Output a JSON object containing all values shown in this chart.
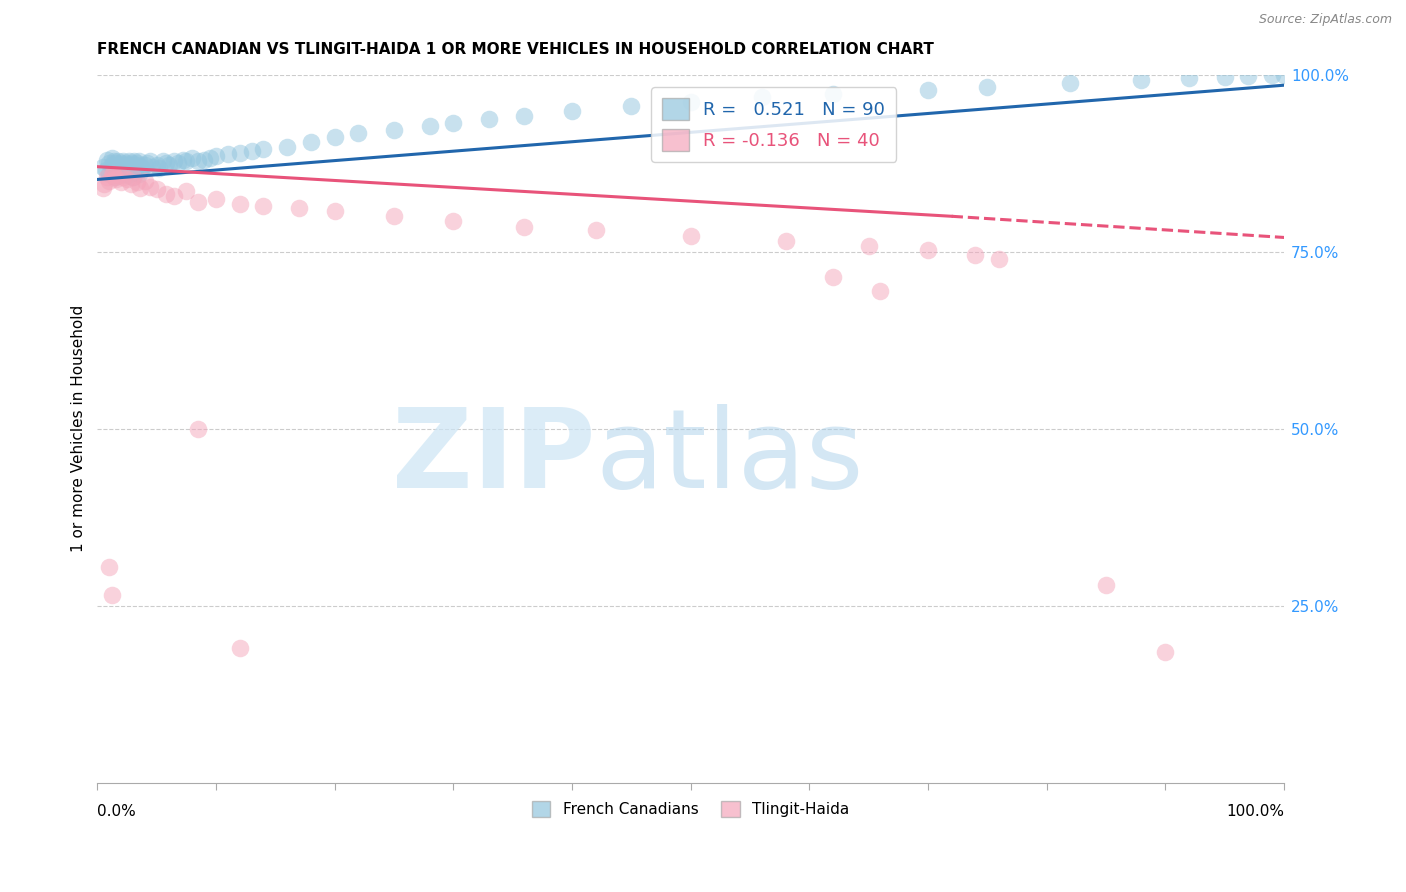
{
  "title": "FRENCH CANADIAN VS TLINGIT-HAIDA 1 OR MORE VEHICLES IN HOUSEHOLD CORRELATION CHART",
  "source": "Source: ZipAtlas.com",
  "ylabel": "1 or more Vehicles in Household",
  "legend_label1": "French Canadians",
  "legend_label2": "Tlingit-Haida",
  "R1": 0.521,
  "N1": 90,
  "R2": -0.136,
  "N2": 40,
  "blue_color": "#92c5de",
  "pink_color": "#f4a6bb",
  "blue_line_color": "#2166ac",
  "pink_line_color": "#e8537a",
  "xlim": [
    0.0,
    1.0
  ],
  "ylim": [
    0.0,
    1.0
  ],
  "blue_line_x0": 0.0,
  "blue_line_y0": 0.852,
  "blue_line_x1": 1.0,
  "blue_line_y1": 0.985,
  "pink_line_x0": 0.0,
  "pink_line_y0": 0.87,
  "pink_line_solid_x1": 0.72,
  "pink_line_solid_y1": 0.8,
  "pink_line_dash_x1": 1.02,
  "pink_line_dash_y1": 0.768,
  "blue_scatter_x": [
    0.005,
    0.007,
    0.008,
    0.01,
    0.01,
    0.012,
    0.012,
    0.013,
    0.014,
    0.015,
    0.015,
    0.016,
    0.017,
    0.018,
    0.018,
    0.019,
    0.02,
    0.02,
    0.021,
    0.022,
    0.022,
    0.023,
    0.024,
    0.025,
    0.025,
    0.026,
    0.027,
    0.028,
    0.028,
    0.029,
    0.03,
    0.03,
    0.031,
    0.032,
    0.033,
    0.034,
    0.035,
    0.035,
    0.037,
    0.038,
    0.04,
    0.042,
    0.044,
    0.046,
    0.05,
    0.052,
    0.055,
    0.058,
    0.06,
    0.065,
    0.068,
    0.072,
    0.075,
    0.08,
    0.085,
    0.09,
    0.095,
    0.1,
    0.11,
    0.12,
    0.13,
    0.14,
    0.16,
    0.18,
    0.2,
    0.22,
    0.25,
    0.28,
    0.3,
    0.33,
    0.36,
    0.4,
    0.45,
    0.5,
    0.56,
    0.62,
    0.7,
    0.75,
    0.82,
    0.88,
    0.92,
    0.95,
    0.97,
    0.99,
    1.0,
    0.015,
    0.02,
    0.025,
    0.03,
    0.035
  ],
  "blue_scatter_y": [
    0.87,
    0.865,
    0.88,
    0.875,
    0.86,
    0.872,
    0.882,
    0.868,
    0.878,
    0.875,
    0.865,
    0.87,
    0.878,
    0.862,
    0.872,
    0.868,
    0.875,
    0.865,
    0.872,
    0.878,
    0.86,
    0.868,
    0.875,
    0.872,
    0.862,
    0.868,
    0.878,
    0.865,
    0.872,
    0.875,
    0.87,
    0.862,
    0.878,
    0.868,
    0.875,
    0.872,
    0.865,
    0.878,
    0.87,
    0.868,
    0.872,
    0.875,
    0.878,
    0.87,
    0.872,
    0.868,
    0.878,
    0.875,
    0.872,
    0.878,
    0.875,
    0.88,
    0.878,
    0.882,
    0.878,
    0.88,
    0.882,
    0.885,
    0.888,
    0.89,
    0.892,
    0.895,
    0.898,
    0.905,
    0.912,
    0.918,
    0.922,
    0.928,
    0.932,
    0.938,
    0.942,
    0.948,
    0.955,
    0.962,
    0.968,
    0.972,
    0.978,
    0.982,
    0.988,
    0.992,
    0.995,
    0.997,
    0.998,
    0.999,
    1.0,
    0.855,
    0.86,
    0.858,
    0.855,
    0.86
  ],
  "pink_scatter_x": [
    0.005,
    0.006,
    0.008,
    0.01,
    0.012,
    0.013,
    0.015,
    0.016,
    0.018,
    0.02,
    0.022,
    0.025,
    0.028,
    0.03,
    0.033,
    0.036,
    0.04,
    0.044,
    0.05,
    0.058,
    0.065,
    0.075,
    0.085,
    0.1,
    0.12,
    0.14,
    0.17,
    0.2,
    0.25,
    0.3,
    0.36,
    0.42,
    0.5,
    0.58,
    0.65,
    0.7,
    0.74,
    0.76,
    0.85,
    0.9
  ],
  "pink_scatter_y": [
    0.84,
    0.845,
    0.855,
    0.85,
    0.858,
    0.86,
    0.855,
    0.852,
    0.858,
    0.848,
    0.855,
    0.852,
    0.845,
    0.855,
    0.848,
    0.84,
    0.85,
    0.842,
    0.838,
    0.832,
    0.828,
    0.835,
    0.82,
    0.825,
    0.818,
    0.815,
    0.812,
    0.808,
    0.8,
    0.793,
    0.785,
    0.78,
    0.772,
    0.765,
    0.758,
    0.752,
    0.745,
    0.74,
    0.28,
    0.185
  ],
  "pink_outlier_x": [
    0.01,
    0.012,
    0.085,
    0.12,
    0.62,
    0.66
  ],
  "pink_outlier_y": [
    0.305,
    0.265,
    0.5,
    0.19,
    0.715,
    0.695
  ]
}
